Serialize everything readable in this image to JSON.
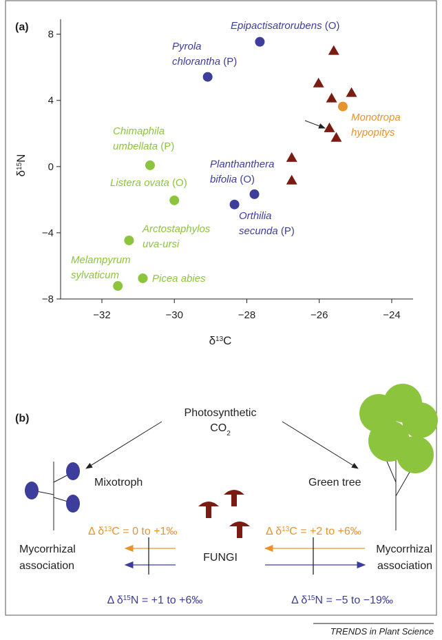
{
  "chart_data": {
    "type": "scatter",
    "panel_label": "(a)",
    "x_label": {
      "pre": "δ",
      "sup": "13",
      "post": "C"
    },
    "y_label": {
      "pre": "δ",
      "sup": "15",
      "post": "N"
    },
    "xlim": [
      -33.14,
      -23.41
    ],
    "ylim": [
      -8,
      8.9
    ],
    "xticks": [
      {
        "value": -32,
        "label": "−32"
      },
      {
        "value": -30,
        "label": "−30"
      },
      {
        "value": -28,
        "label": "−28"
      },
      {
        "value": -26,
        "label": "−26"
      },
      {
        "value": -24,
        "label": "−24"
      }
    ],
    "yticks": [
      {
        "value": -8,
        "label": "−8"
      },
      {
        "value": -4,
        "label": "−4"
      },
      0,
      4,
      8
    ],
    "series": [
      {
        "color": "#3d3d9c",
        "marker": "circle",
        "x": [
          -27.64,
          -29.08,
          -27.79,
          -28.34
        ],
        "values": [
          7.54,
          5.42,
          -1.67,
          -2.29
        ],
        "labels": [
          {
            "lines": [
              "Epipactisatrorubens"
            ],
            "tag": "(O)"
          },
          {
            "lines": [
              "Pyrola",
              "chlorantha"
            ],
            "tag": "(P)"
          },
          {
            "lines": [
              "Planthanthera",
              "bifolia"
            ],
            "tag": "(O)"
          },
          {
            "lines": [
              "Orthilia",
              "secunda"
            ],
            "tag": "(P)"
          }
        ]
      },
      {
        "color": "#8cc43e",
        "marker": "circle",
        "x": [
          -30.67,
          -30.0,
          -31.25,
          -30.87,
          -31.56
        ],
        "values": [
          0.08,
          -2.04,
          -4.46,
          -6.75,
          -7.21
        ],
        "labels": [
          {
            "lines": [
              "Chimaphila",
              "umbellata"
            ],
            "tag": "(P)"
          },
          {
            "lines": [
              "Listera ovata"
            ],
            "tag": "(O)"
          },
          {
            "lines": [
              "Arctostaphylos",
              "uva-ursi"
            ]
          },
          {
            "lines": [
              "Picea abies"
            ]
          },
          {
            "lines": [
              "Melampyrum",
              "sylvaticum"
            ]
          }
        ]
      },
      {
        "color": "#e8922c",
        "marker": "circle",
        "x": [
          -25.35
        ],
        "values": [
          3.63
        ],
        "labels": [
          {
            "lines": [
              "Monotropa",
              "hypopitys"
            ]
          }
        ]
      },
      {
        "color": "#7b1c12",
        "marker": "triangle",
        "x": [
          -25.6,
          -26.02,
          -25.66,
          -25.11,
          -25.72,
          -25.53,
          -26.76,
          -26.76
        ],
        "values": [
          7.0,
          5.04,
          4.13,
          4.46,
          2.33,
          1.75,
          0.54,
          -0.83
        ]
      }
    ]
  },
  "diagram": {
    "panel_label": "(b)",
    "source": [
      "Photosynthetic",
      {
        "pre": "CO",
        "sub": "2"
      }
    ],
    "left_plant": "Mixotroph",
    "right_plant": "Green tree",
    "fungi": "FUNGI",
    "left_association": [
      "Mycorrhizal",
      "association"
    ],
    "right_association": [
      "Mycorrhizal",
      "association"
    ],
    "left_carbon": {
      "pre": "Δ δ",
      "sup": "13",
      "post": "C =  0 to +1‰"
    },
    "right_carbon": {
      "pre": "Δ δ",
      "sup": "13",
      "post": "C = +2 to +6‰"
    },
    "left_nitrogen": {
      "pre": "Δ δ",
      "sup": "15",
      "post": "N = +1 to +6‰"
    },
    "right_nitrogen": {
      "pre": "Δ δ",
      "sup": "15",
      "post": "N = −5 to −19‰"
    }
  },
  "footer": "TRENDS in Plant Science"
}
